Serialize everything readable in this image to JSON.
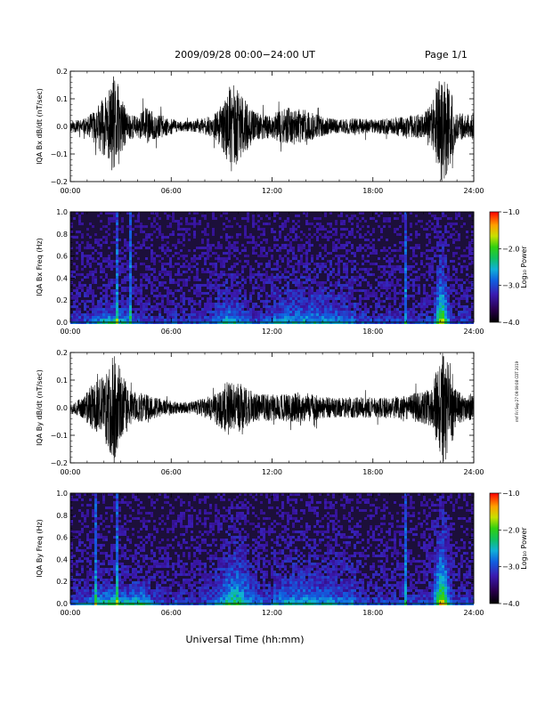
{
  "header": {
    "title": "2009/09/28  00:00−24:00 UT",
    "page": "Page 1/1"
  },
  "x_label": "Universal Time (hh:mm)",
  "side_note": "rmf Fri Sep 27 09:09:08 CDT 2019",
  "colors": {
    "trace": "#000000",
    "spectrogram_background": "#1c0f3a"
  },
  "chart_data": [
    {
      "type": "line",
      "ylabel": "IQA Bx dB/dt (nT/sec)",
      "x_ticks": [
        "00:00",
        "06:00",
        "12:00",
        "18:00",
        "24:00"
      ],
      "x_range": [
        0,
        24
      ],
      "y_ticks": [
        "0.2",
        "0.1",
        "0.0",
        "−0.1",
        "−0.2"
      ],
      "ylim": [
        -0.2,
        0.2
      ],
      "seed": 11,
      "envelope": [
        [
          0,
          0.02
        ],
        [
          1,
          0.03
        ],
        [
          1.5,
          0.07
        ],
        [
          2.3,
          0.13
        ],
        [
          2.6,
          0.19
        ],
        [
          2.9,
          0.14
        ],
        [
          3.3,
          0.06
        ],
        [
          4,
          0.035
        ],
        [
          4.4,
          0.07
        ],
        [
          5,
          0.05
        ],
        [
          6.5,
          0.018
        ],
        [
          7.3,
          0.02
        ],
        [
          8.5,
          0.04
        ],
        [
          9,
          0.08
        ],
        [
          9.6,
          0.16
        ],
        [
          10.2,
          0.11
        ],
        [
          11,
          0.05
        ],
        [
          12,
          0.045
        ],
        [
          13,
          0.07
        ],
        [
          14,
          0.06
        ],
        [
          15,
          0.035
        ],
        [
          16,
          0.025
        ],
        [
          17,
          0.03
        ],
        [
          18,
          0.025
        ],
        [
          19,
          0.03
        ],
        [
          20,
          0.04
        ],
        [
          21,
          0.045
        ],
        [
          21.6,
          0.1
        ],
        [
          22.1,
          0.22
        ],
        [
          22.6,
          0.14
        ],
        [
          23,
          0.05
        ],
        [
          24,
          0.04
        ]
      ]
    },
    {
      "type": "heatmap",
      "ylabel": "IQA Bx Freq (Hz)",
      "x_ticks": [
        "00:00",
        "06:00",
        "12:00",
        "18:00",
        "24:00"
      ],
      "x_range": [
        0,
        24
      ],
      "y_ticks": [
        "1.0",
        "0.8",
        "0.6",
        "0.4",
        "0.2",
        "0.0"
      ],
      "ylim": [
        0,
        1
      ],
      "colorbar": {
        "label": "Log₁₀ Power",
        "ticks": [
          "−1.0",
          "−2.0",
          "−3.0",
          "−4.0"
        ],
        "range": [
          -4,
          -1
        ]
      },
      "seed": 23,
      "features": [
        {
          "center": 2.5,
          "width": 1.2,
          "peak": 0.22,
          "decay": 0.1
        },
        {
          "center": 9.5,
          "width": 0.9,
          "peak": 0.18,
          "decay": 0.2
        },
        {
          "center": 14,
          "width": 2.5,
          "peak": 0.1,
          "decay": 0.2
        },
        {
          "center": 22.1,
          "width": 0.35,
          "peak": 0.45,
          "decay": 0.35
        }
      ],
      "lines": [
        2.75,
        3.6,
        19.9
      ]
    },
    {
      "type": "line",
      "ylabel": "IQA By dB/dt (nT/sec)",
      "x_ticks": [
        "00:00",
        "06:00",
        "12:00",
        "18:00",
        "24:00"
      ],
      "x_range": [
        0,
        24
      ],
      "y_ticks": [
        "0.2",
        "0.1",
        "0.0",
        "−0.1",
        "−0.2"
      ],
      "ylim": [
        -0.2,
        0.2
      ],
      "seed": 37,
      "envelope": [
        [
          0,
          0.02
        ],
        [
          0.8,
          0.04
        ],
        [
          1.2,
          0.08
        ],
        [
          2,
          0.12
        ],
        [
          2.6,
          0.2
        ],
        [
          3.1,
          0.12
        ],
        [
          3.6,
          0.06
        ],
        [
          4.5,
          0.05
        ],
        [
          5.5,
          0.03
        ],
        [
          6.5,
          0.02
        ],
        [
          7.5,
          0.025
        ],
        [
          8.5,
          0.05
        ],
        [
          9.5,
          0.11
        ],
        [
          10.1,
          0.09
        ],
        [
          11,
          0.05
        ],
        [
          12,
          0.05
        ],
        [
          13,
          0.05
        ],
        [
          14,
          0.055
        ],
        [
          15,
          0.04
        ],
        [
          16,
          0.035
        ],
        [
          17,
          0.04
        ],
        [
          18,
          0.035
        ],
        [
          19,
          0.04
        ],
        [
          20,
          0.045
        ],
        [
          21.5,
          0.07
        ],
        [
          22.1,
          0.22
        ],
        [
          22.6,
          0.16
        ],
        [
          23,
          0.06
        ],
        [
          24,
          0.04
        ]
      ]
    },
    {
      "type": "heatmap",
      "ylabel": "IQA By Freq (Hz)",
      "x_ticks": [
        "00:00",
        "06:00",
        "12:00",
        "18:00",
        "24:00"
      ],
      "x_range": [
        0,
        24
      ],
      "y_ticks": [
        "1.0",
        "0.8",
        "0.6",
        "0.4",
        "0.2",
        "0.0"
      ],
      "ylim": [
        0,
        1
      ],
      "colorbar": {
        "label": "Log₁₀ Power",
        "ticks": [
          "−1.0",
          "−2.0",
          "−3.0",
          "−4.0"
        ],
        "range": [
          -4,
          -1
        ]
      },
      "seed": 51,
      "features": [
        {
          "center": 2.4,
          "width": 1.4,
          "peak": 0.25,
          "decay": 0.12
        },
        {
          "center": 4.2,
          "width": 0.6,
          "peak": 0.2,
          "decay": 0.12
        },
        {
          "center": 9.8,
          "width": 1.0,
          "peak": 0.3,
          "decay": 0.3
        },
        {
          "center": 14,
          "width": 2.5,
          "peak": 0.12,
          "decay": 0.2
        },
        {
          "center": 22.1,
          "width": 0.4,
          "peak": 0.5,
          "decay": 0.4
        }
      ],
      "lines": [
        1.5,
        2.75,
        4.3,
        19.9
      ]
    }
  ]
}
